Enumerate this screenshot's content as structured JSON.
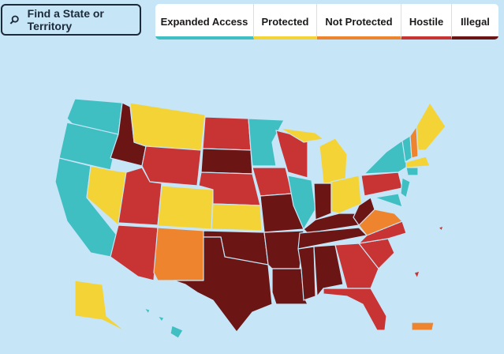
{
  "search": {
    "placeholder": "Find a State or Territory"
  },
  "legend": {
    "items": [
      "Expanded Access",
      "Protected",
      "Not Protected",
      "Hostile",
      "Illegal"
    ]
  }
}
